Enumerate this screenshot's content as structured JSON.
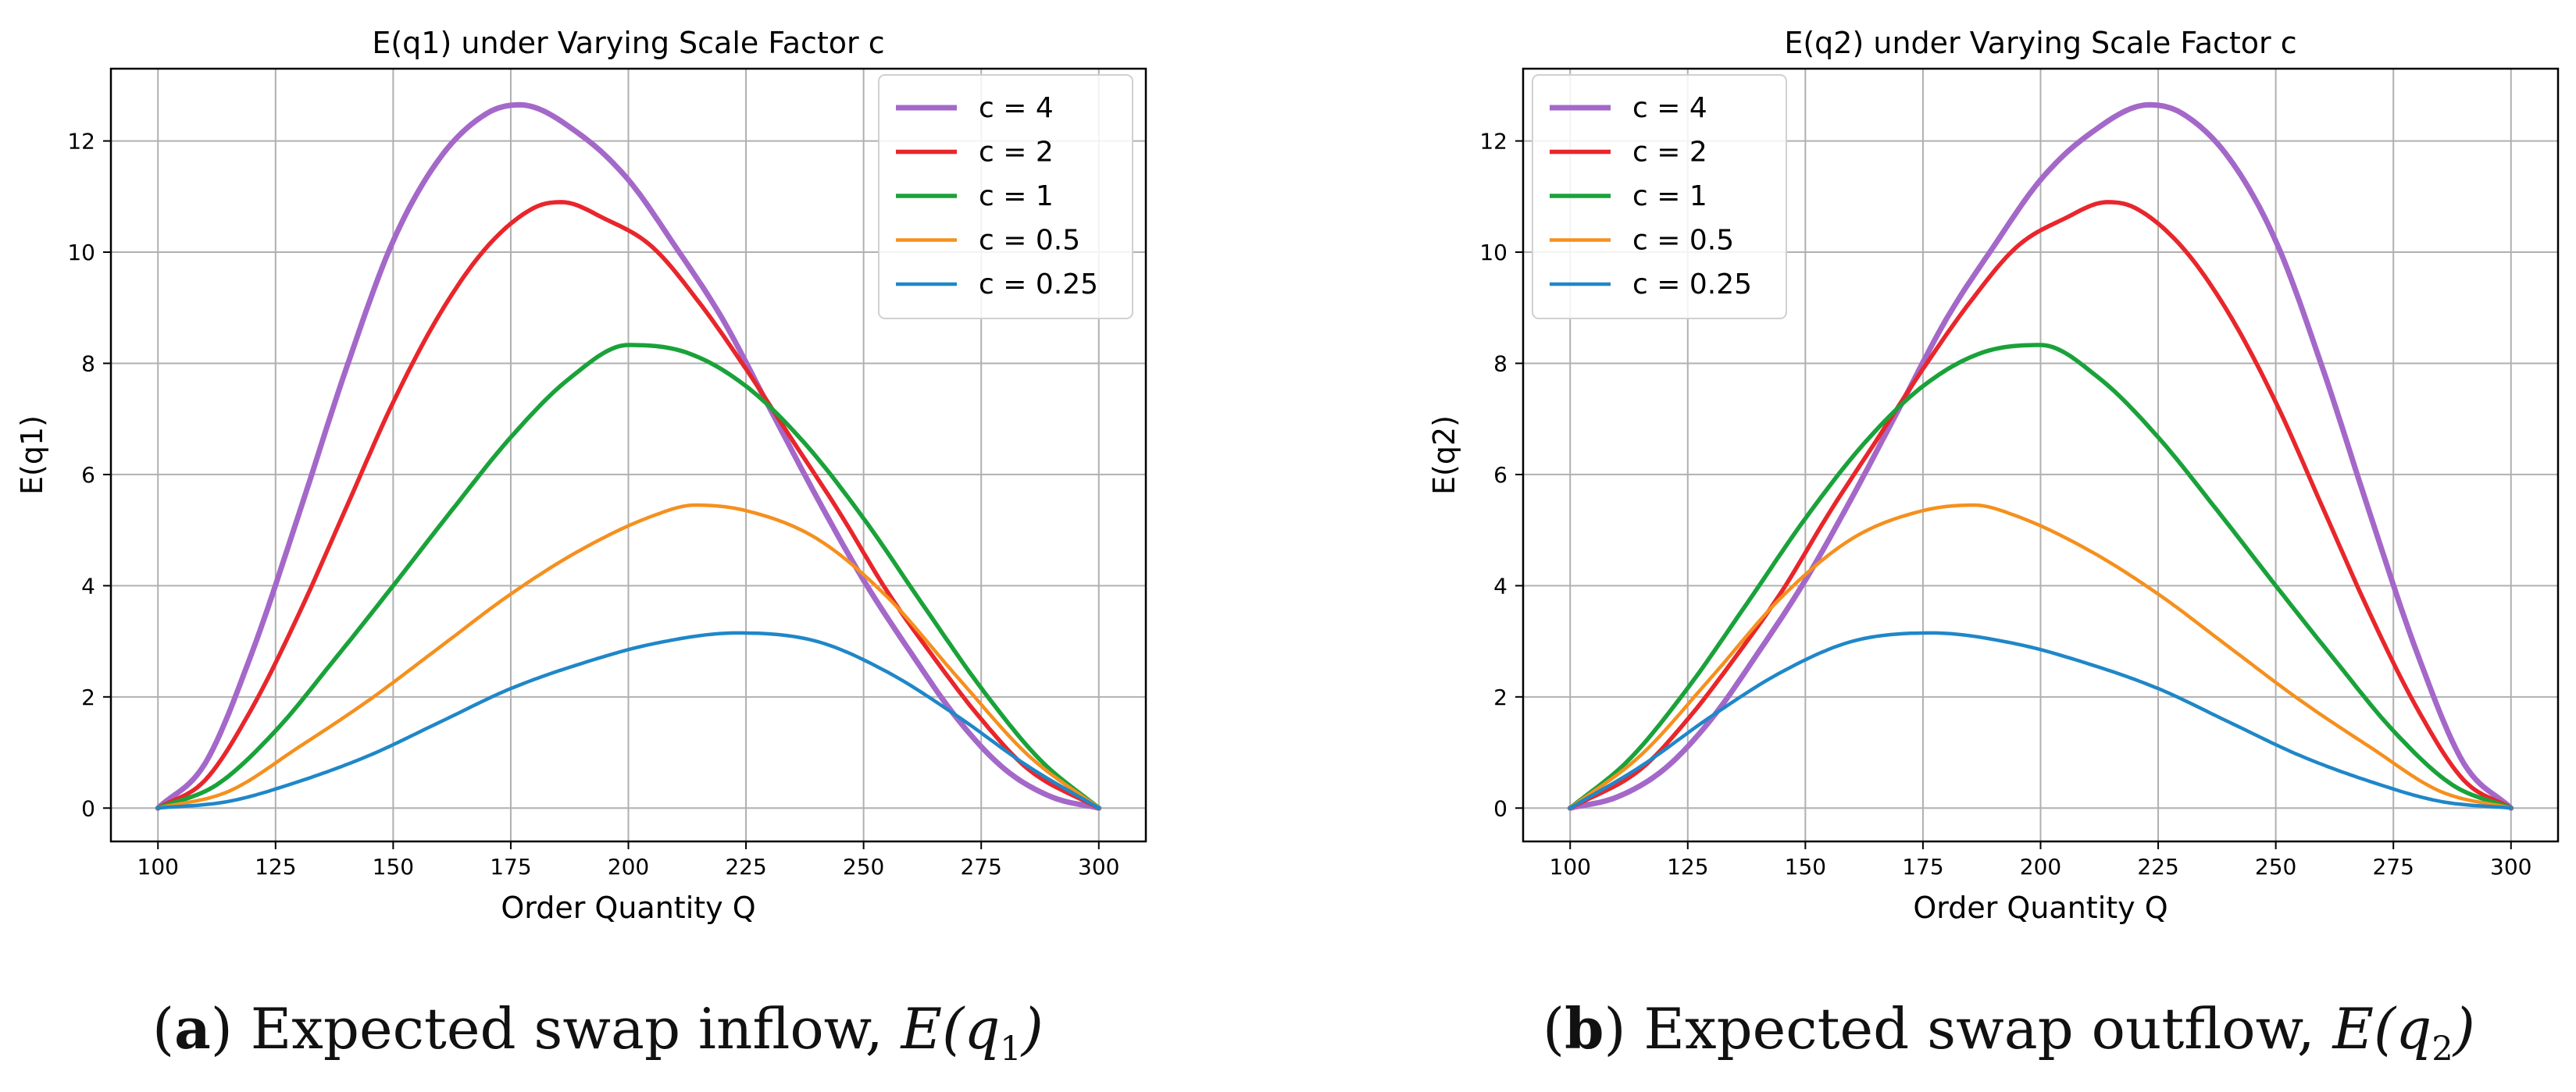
{
  "figure": {
    "captions": [
      {
        "letter": "a",
        "prefix": "(",
        "suffix": ") Expected swap inflow,",
        "math_var": "E(q",
        "math_sub": "1",
        "math_close": ")"
      },
      {
        "letter": "b",
        "prefix": "(",
        "suffix": ") Expected swap outflow,",
        "math_var": "E(q",
        "math_sub": "2",
        "math_close": ")"
      }
    ]
  },
  "chart_data": [
    {
      "type": "line",
      "title": "E(q1) under Varying Scale Factor c",
      "xlabel": "Order Quantity Q",
      "ylabel": "E(q1)",
      "xlim": [
        90,
        310
      ],
      "ylim": [
        -0.6,
        13.3
      ],
      "xticks": [
        100,
        125,
        150,
        175,
        200,
        225,
        250,
        275,
        300
      ],
      "yticks": [
        0,
        2,
        4,
        6,
        8,
        10,
        12
      ],
      "grid": true,
      "legend_position": "top-right",
      "series": [
        {
          "name": "c = 4",
          "color": "#a468c9",
          "peak_x": 176.9,
          "peak_y": 12.65,
          "line_width": "thick",
          "x": [
            100,
            110,
            120,
            130,
            140,
            150,
            160,
            170,
            176.9,
            190,
            200,
            210,
            220,
            230,
            240,
            250,
            260,
            270,
            280,
            290,
            300
          ],
          "y": [
            0,
            0.8,
            2.8,
            5.3,
            7.9,
            10.2,
            11.7,
            12.5,
            12.65,
            12.1,
            11.3,
            10.1,
            8.8,
            7.2,
            5.6,
            4.1,
            2.8,
            1.6,
            0.7,
            0.2,
            0
          ]
        },
        {
          "name": "c = 2",
          "color": "#e8262b",
          "peak_x": 185.8,
          "peak_y": 10.9,
          "line_width": "medium",
          "x": [
            100,
            110,
            120,
            130,
            140,
            150,
            160,
            170,
            180,
            185.8,
            195,
            205,
            215,
            225,
            235,
            245,
            255,
            265,
            275,
            285,
            300
          ],
          "y": [
            0,
            0.5,
            1.8,
            3.5,
            5.4,
            7.3,
            8.9,
            10.1,
            10.8,
            10.9,
            10.6,
            10.1,
            9.1,
            7.9,
            6.6,
            5.3,
            3.9,
            2.7,
            1.6,
            0.7,
            0
          ]
        },
        {
          "name": "c = 1",
          "color": "#1aa23a",
          "peak_x": 200,
          "peak_y": 8.33,
          "line_width": "medium",
          "x": [
            100,
            112.5,
            125,
            137.5,
            150,
            162.5,
            175,
            187.5,
            200,
            212.5,
            225,
            237.5,
            250,
            262.5,
            275,
            287.5,
            300
          ],
          "y": [
            0,
            0.42,
            1.39,
            2.67,
            4.0,
            5.36,
            6.67,
            7.73,
            8.33,
            8.19,
            7.59,
            6.56,
            5.21,
            3.67,
            2.16,
            0.87,
            0
          ]
        },
        {
          "name": "c = 0.5",
          "color": "#f5901e",
          "peak_x": 214.2,
          "peak_y": 5.45,
          "line_width": "thin",
          "x": [
            100,
            115,
            130,
            145,
            160,
            175,
            190,
            205,
            214.2,
            225,
            240,
            255,
            270,
            285,
            300
          ],
          "y": [
            0,
            0.3,
            1.1,
            1.95,
            2.9,
            3.85,
            4.65,
            5.25,
            5.45,
            5.35,
            4.85,
            3.8,
            2.35,
            0.95,
            0
          ]
        },
        {
          "name": "c = 0.25",
          "color": "#1f87c8",
          "peak_x": 223.1,
          "peak_y": 3.15,
          "line_width": "thin",
          "x": [
            100,
            115,
            130,
            145,
            160,
            175,
            190,
            205,
            223.1,
            240,
            255,
            270,
            285,
            300
          ],
          "y": [
            0,
            0.12,
            0.48,
            0.95,
            1.55,
            2.15,
            2.6,
            2.95,
            3.15,
            3.0,
            2.45,
            1.65,
            0.75,
            0
          ]
        }
      ]
    },
    {
      "type": "line",
      "title": "E(q2) under Varying Scale Factor c",
      "xlabel": "Order Quantity Q",
      "ylabel": "E(q2)",
      "xlim": [
        90,
        310
      ],
      "ylim": [
        -0.6,
        13.3
      ],
      "xticks": [
        100,
        125,
        150,
        175,
        200,
        225,
        250,
        275,
        300
      ],
      "yticks": [
        0,
        2,
        4,
        6,
        8,
        10,
        12
      ],
      "grid": true,
      "legend_position": "top-left",
      "series": [
        {
          "name": "c = 4",
          "color": "#a468c9",
          "peak_x": 223.1,
          "peak_y": 12.65,
          "line_width": "thick",
          "x": [
            100,
            110,
            120,
            130,
            140,
            150,
            160,
            170,
            180,
            190,
            200,
            210,
            223.1,
            230,
            240,
            250,
            260,
            270,
            280,
            290,
            300
          ],
          "y": [
            0,
            0.2,
            0.7,
            1.6,
            2.8,
            4.1,
            5.6,
            7.2,
            8.8,
            10.1,
            11.3,
            12.1,
            12.65,
            12.5,
            11.7,
            10.2,
            7.9,
            5.3,
            2.8,
            0.8,
            0
          ]
        },
        {
          "name": "c = 2",
          "color": "#e8262b",
          "peak_x": 214.2,
          "peak_y": 10.9,
          "line_width": "medium",
          "x": [
            100,
            115,
            125,
            135,
            145,
            155,
            165,
            175,
            185,
            195,
            205,
            214.2,
            220,
            230,
            240,
            250,
            260,
            270,
            280,
            290,
            300
          ],
          "y": [
            0,
            0.7,
            1.6,
            2.7,
            3.9,
            5.3,
            6.6,
            7.9,
            9.1,
            10.1,
            10.6,
            10.9,
            10.8,
            10.1,
            8.9,
            7.3,
            5.4,
            3.5,
            1.8,
            0.5,
            0
          ]
        },
        {
          "name": "c = 1",
          "color": "#1aa23a",
          "peak_x": 200,
          "peak_y": 8.33,
          "line_width": "medium",
          "x": [
            100,
            112.5,
            125,
            137.5,
            150,
            162.5,
            175,
            187.5,
            200,
            212.5,
            225,
            237.5,
            250,
            262.5,
            275,
            287.5,
            300
          ],
          "y": [
            0,
            0.87,
            2.16,
            3.67,
            5.21,
            6.56,
            7.59,
            8.19,
            8.33,
            7.73,
            6.67,
            5.36,
            4.0,
            2.67,
            1.39,
            0.42,
            0
          ]
        },
        {
          "name": "c = 0.5",
          "color": "#f5901e",
          "peak_x": 185.8,
          "peak_y": 5.45,
          "line_width": "thin",
          "x": [
            100,
            115,
            130,
            145,
            160,
            175,
            185.8,
            195,
            210,
            225,
            240,
            255,
            270,
            285,
            300
          ],
          "y": [
            0,
            0.95,
            2.35,
            3.8,
            4.85,
            5.35,
            5.45,
            5.25,
            4.65,
            3.85,
            2.9,
            1.95,
            1.1,
            0.3,
            0
          ]
        },
        {
          "name": "c = 0.25",
          "color": "#1f87c8",
          "peak_x": 176.9,
          "peak_y": 3.15,
          "line_width": "thin",
          "x": [
            100,
            115,
            130,
            145,
            160,
            176.9,
            195,
            210,
            225,
            240,
            255,
            270,
            285,
            300
          ],
          "y": [
            0,
            0.75,
            1.65,
            2.45,
            3.0,
            3.15,
            2.95,
            2.6,
            2.15,
            1.55,
            0.95,
            0.48,
            0.12,
            0
          ]
        }
      ]
    }
  ]
}
